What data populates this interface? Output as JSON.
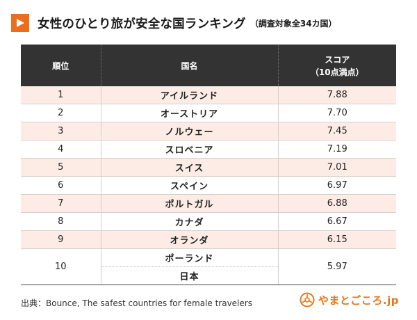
{
  "header": {
    "title": "女性のひとり旅が安全な国ランキング",
    "subtitle": "（調査対象全34カ国）",
    "icon": "play-icon",
    "accent_color": "#ec6d1c"
  },
  "table": {
    "columns": {
      "rank": "順位",
      "country": "国名",
      "score_line1": "スコア",
      "score_line2": "（10点満点）"
    },
    "rows": [
      {
        "rank": "1",
        "country": "アイルランド",
        "score": "7.88"
      },
      {
        "rank": "2",
        "country": "オーストリア",
        "score": "7.70"
      },
      {
        "rank": "3",
        "country": "ノルウェー",
        "score": "7.45"
      },
      {
        "rank": "4",
        "country": "スロベニア",
        "score": "7.19"
      },
      {
        "rank": "5",
        "country": "スイス",
        "score": "7.01"
      },
      {
        "rank": "6",
        "country": "スペイン",
        "score": "6.97"
      },
      {
        "rank": "7",
        "country": "ポルトガル",
        "score": "6.88"
      },
      {
        "rank": "8",
        "country": "カナダ",
        "score": "6.67"
      },
      {
        "rank": "9",
        "country": "オランダ",
        "score": "6.15"
      },
      {
        "rank": "10",
        "country": "ポーランド",
        "country_2": "日本",
        "score": "5.97"
      }
    ],
    "header_bg": "#333333",
    "shaded_row_bg": "#fcece5"
  },
  "footer": {
    "source": "出典：Bounce, The safest countries for female travelers",
    "logo_text": "やまとごころ.jp",
    "logo_icon": "yamatogokoro-logo-icon",
    "logo_color": "#e4761c"
  }
}
